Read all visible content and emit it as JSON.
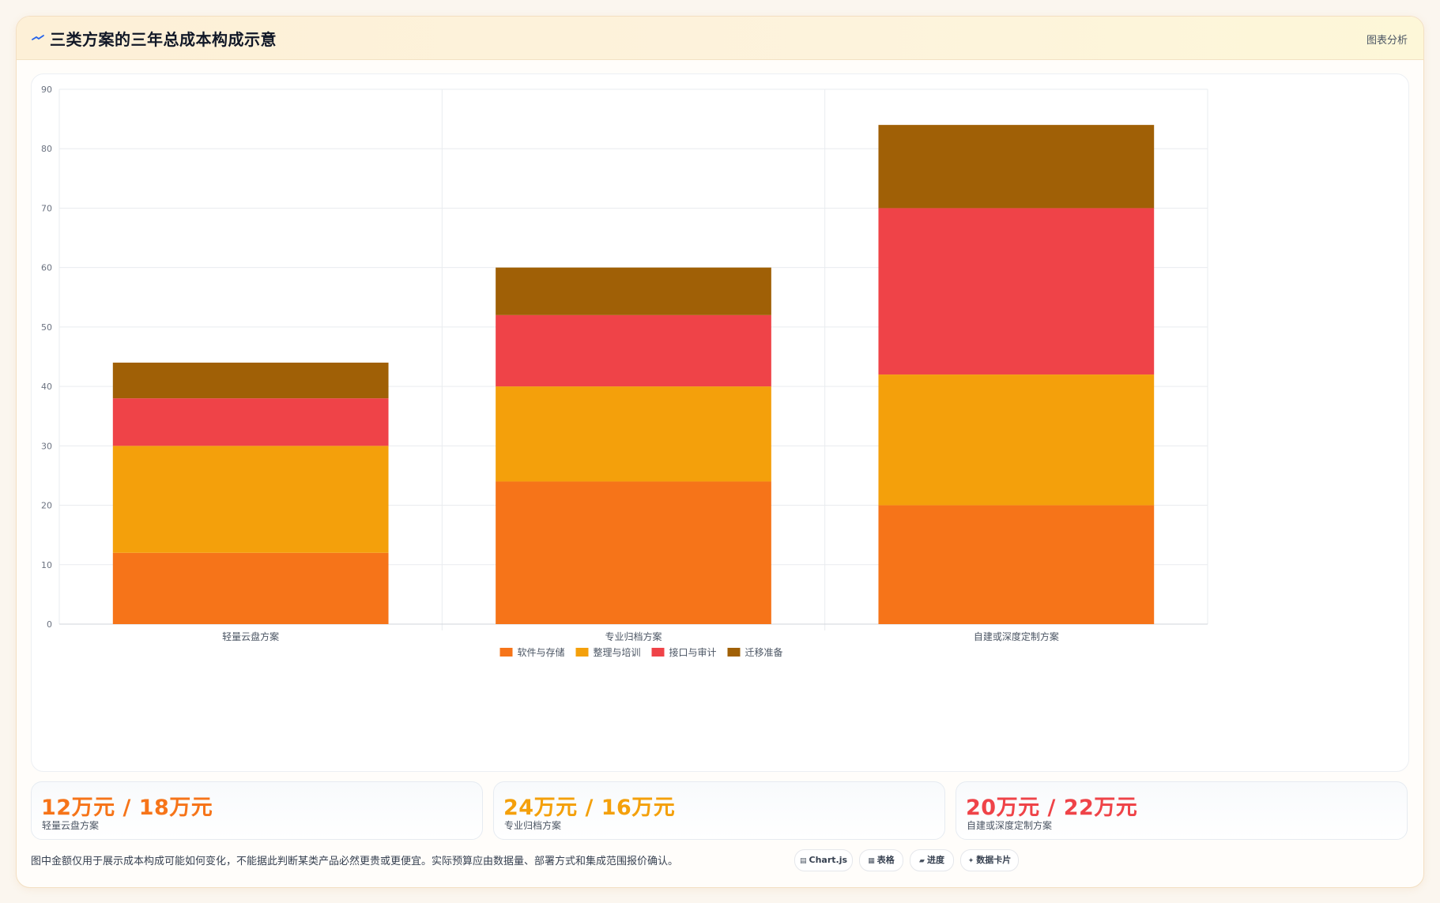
{
  "header": {
    "title": "三类方案的三年总成本构成示意",
    "action_label": "图表分析"
  },
  "colors": {
    "software": "#f67419",
    "training": "#f4a00b",
    "interface": "#ef4348",
    "migration": "#a06006",
    "grid": "#e9ecef",
    "axis_text": "#6b7280"
  },
  "chart_data": {
    "type": "bar",
    "stacked": true,
    "categories": [
      "轻量云盘方案",
      "专业归档方案",
      "自建或深度定制方案"
    ],
    "series": [
      {
        "name": "软件与存储",
        "color": "#f67419",
        "values": [
          12,
          24,
          20
        ]
      },
      {
        "name": "整理与培训",
        "color": "#f4a00b",
        "values": [
          18,
          16,
          22
        ]
      },
      {
        "name": "接口与审计",
        "color": "#ef4348",
        "values": [
          8,
          12,
          28
        ]
      },
      {
        "name": "迁移准备",
        "color": "#a06006",
        "values": [
          6,
          8,
          14
        ]
      }
    ],
    "ylim": [
      0,
      90
    ],
    "yticks": [
      0,
      10,
      20,
      30,
      40,
      50,
      60,
      70,
      80,
      90
    ],
    "grid": true,
    "legend": "bottom-center",
    "title": "",
    "xlabel": "",
    "ylabel": ""
  },
  "stats": [
    {
      "value": "12万元 / 18万元",
      "label": "轻量云盘方案",
      "color": "#f67419"
    },
    {
      "value": "24万元 / 16万元",
      "label": "专业归档方案",
      "color": "#f4a00b"
    },
    {
      "value": "20万元 / 22万元",
      "label": "自建或深度定制方案",
      "color": "#ef4348"
    }
  ],
  "note": "图中金额仅用于展示成本构成可能如何变化，不能据此判断某类产品必然更贵或更便宜。实际预算应由数据量、部署方式和集成范围报价确认。",
  "chips": [
    {
      "icon": "▤",
      "icon_name": "chart-icon",
      "label": "Chart.js"
    },
    {
      "icon": "▦",
      "icon_name": "table-icon",
      "label": "表格"
    },
    {
      "icon": "▰",
      "icon_name": "progress-icon",
      "label": "进度"
    },
    {
      "icon": "✦",
      "icon_name": "sparkle-icon",
      "label": "数据卡片"
    }
  ]
}
